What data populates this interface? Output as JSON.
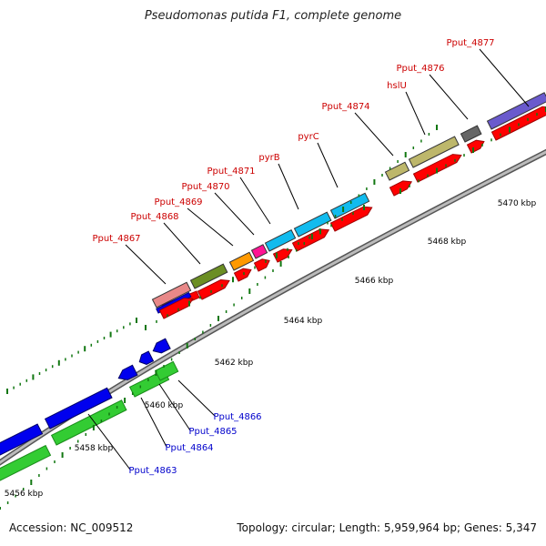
{
  "header": {
    "title": "Pseudomonas putida F1, complete genome"
  },
  "footer": {
    "accession": "Accession: NC_009512",
    "summary": "Topology: circular; Length: 5,959,964 bp; Genes: 5,347"
  },
  "map": {
    "scale_labels": [
      "5456 kbp",
      "5458 kbp",
      "5460 kbp",
      "5462 kbp",
      "5464 kbp",
      "5466 kbp",
      "5468 kbp",
      "5470 kbp"
    ],
    "forward_gene_labels": [
      "Pput_4867",
      "Pput_4868",
      "Pput_4869",
      "Pput_4870",
      "Pput_4871",
      "pyrB",
      "pyrC",
      "Pput_4874",
      "hslU",
      "Pput_4876",
      "Pput_4877"
    ],
    "reverse_gene_labels": [
      "Pput_4863",
      "Pput_4864",
      "Pput_4865",
      "Pput_4866"
    ],
    "colors": {
      "forward_label": "#cc0000",
      "reverse_label": "#0000cc",
      "cds": "#ff0000",
      "reverse_gene": "#0000ee",
      "reverse_cds": "#33cc33",
      "backbone": "#999999",
      "tick": "#117711",
      "Pput_4867": "#e88888",
      "Pput_4868": "#6b8e23",
      "Pput_4869": "#ff9900",
      "Pput_4870": "#ff1493",
      "Pput_4871": "#11bbee",
      "pyrB": "#11bbee",
      "pyrC": "#11bbee",
      "Pput_4874": "#bdb76b",
      "hslU": "#bdb76b",
      "Pput_4876": "#666666",
      "Pput_4877": "#6a5acd"
    }
  }
}
